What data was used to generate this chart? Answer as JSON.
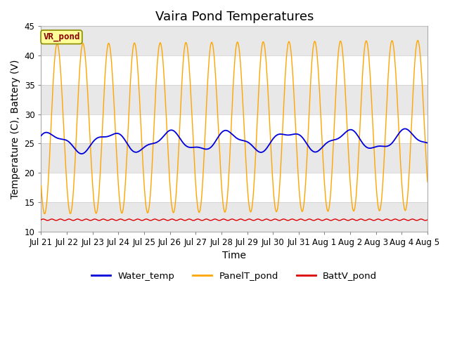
{
  "title": "Vaira Pond Temperatures",
  "xlabel": "Time",
  "ylabel": "Temperature (C), Battery (V)",
  "ylim": [
    10,
    45
  ],
  "yticks": [
    10,
    15,
    20,
    25,
    30,
    35,
    40,
    45
  ],
  "xtick_labels": [
    "Jul 21",
    "Jul 22",
    "Jul 23",
    "Jul 24",
    "Jul 25",
    "Jul 26",
    "Jul 27",
    "Jul 28",
    "Jul 29",
    "Jul 30",
    "Jul 31",
    "Aug 1",
    "Aug 2",
    "Aug 3",
    "Aug 4",
    "Aug 5"
  ],
  "water_color": "#0000dd",
  "panel_color": "#ffa500",
  "batt_color": "#dd0000",
  "bg_color": "#ffffff",
  "plot_bg_color": "#ffffff",
  "band_color": "#e8e8e8",
  "annotation_text": "VR_pond",
  "annotation_color": "#8b0000",
  "annotation_bg": "#ffff99",
  "annotation_border": "#8b8b00",
  "legend_labels": [
    "Water_temp",
    "PanelT_pond",
    "BattV_pond"
  ],
  "title_fontsize": 13,
  "axis_fontsize": 10,
  "tick_fontsize": 8.5
}
